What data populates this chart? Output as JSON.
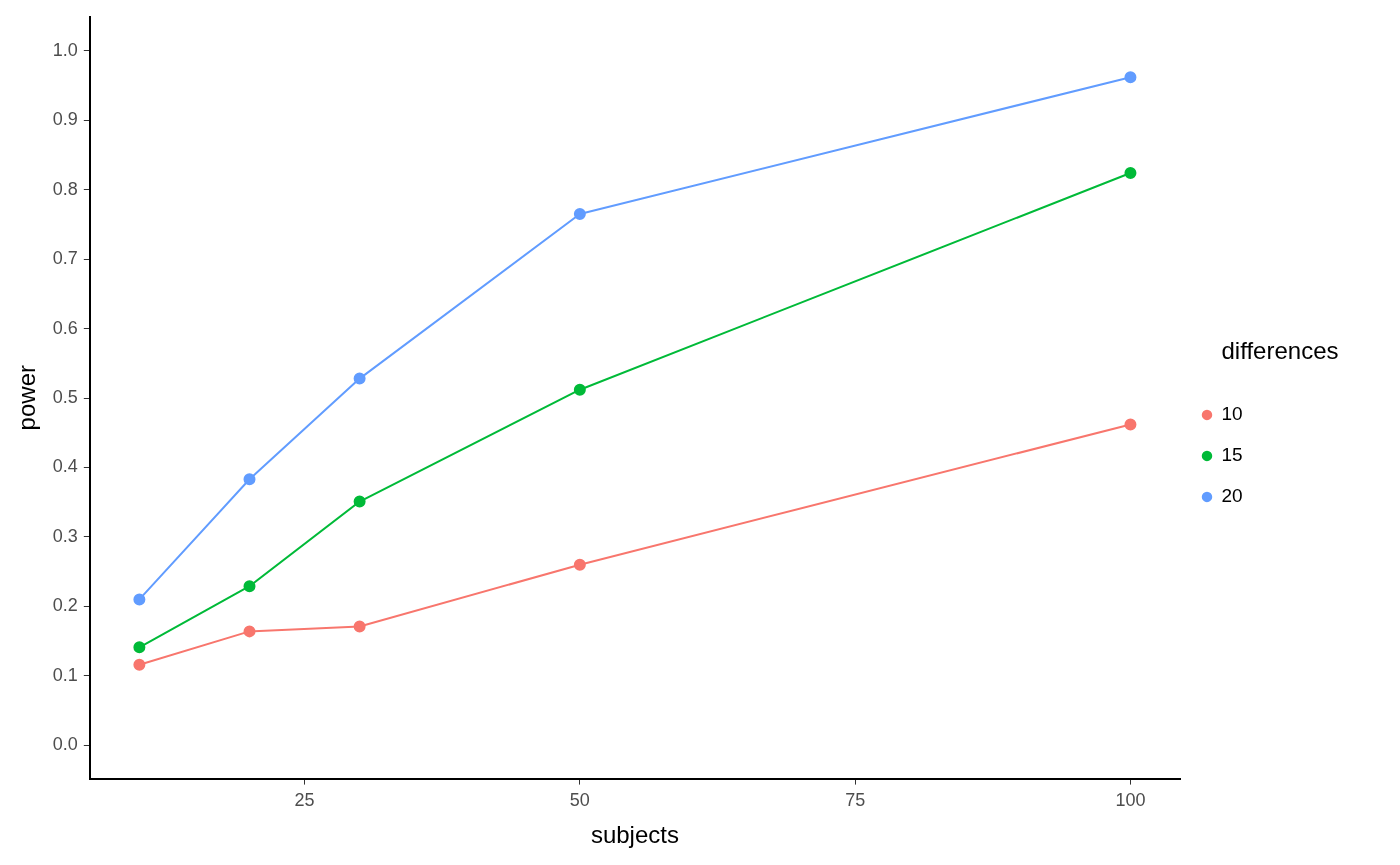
{
  "chart_data": {
    "type": "line",
    "xlabel": "subjects",
    "ylabel": "power",
    "legend_title": "differences",
    "x": [
      10,
      20,
      30,
      50,
      100
    ],
    "series": [
      {
        "name": "10",
        "color": "#f8766d",
        "values": [
          0.116,
          0.164,
          0.171,
          0.26,
          0.462
        ]
      },
      {
        "name": "15",
        "color": "#00ba38",
        "values": [
          0.141,
          0.229,
          0.351,
          0.512,
          0.824
        ]
      },
      {
        "name": "20",
        "color": "#619cff",
        "values": [
          0.21,
          0.383,
          0.528,
          0.765,
          0.962
        ]
      }
    ],
    "xlim": [
      5.5,
      104.5
    ],
    "xticks": [
      25,
      50,
      75,
      100
    ],
    "ylim": [
      -0.048,
      1.049
    ],
    "yticks": [
      {
        "value": 0,
        "label": "0.0"
      },
      0.1,
      0.2,
      0.3,
      0.4,
      0.5,
      0.6,
      0.7,
      0.8,
      0.9,
      {
        "value": 1,
        "label": "1.0"
      }
    ],
    "grid": false,
    "legend": "right",
    "marker": "circle",
    "line_style": "solid"
  }
}
